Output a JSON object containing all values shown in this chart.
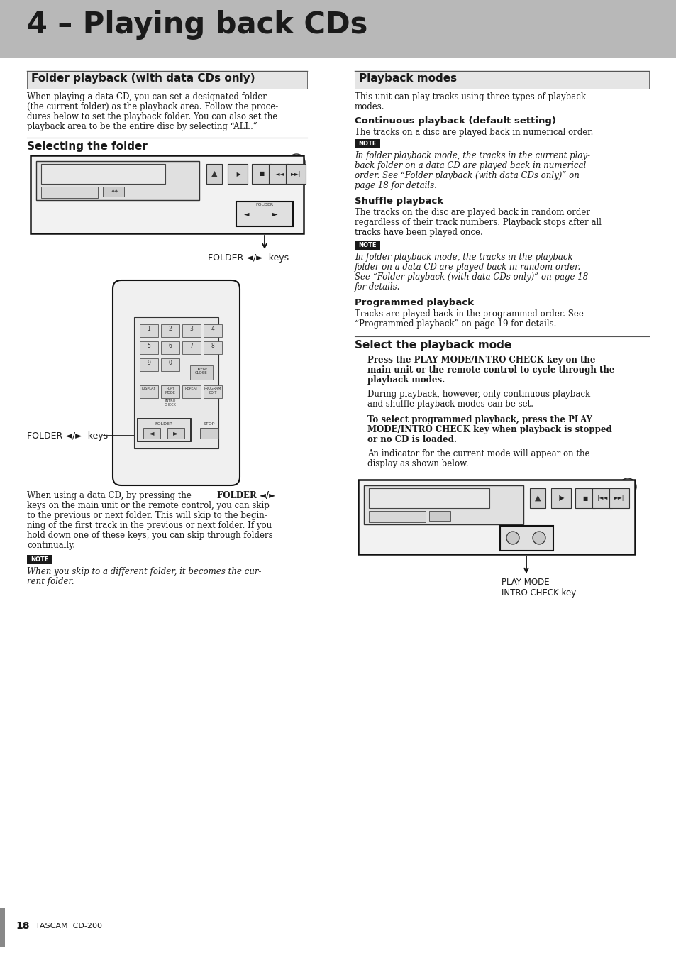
{
  "page_bg": "#ffffff",
  "header_bg": "#b8b8b8",
  "header_text": "4 – Playing back CDs",
  "header_text_color": "#1a1a1a",
  "section1_title": "Folder playback (with data CDs only)",
  "section1_body_lines": [
    "When playing a data CD, you can set a designated folder",
    "(the current folder) as the playback area. Follow the proce-",
    "dures below to set the playback folder. You can also set the",
    "playback area to be the entire disc by selecting “ALL.”"
  ],
  "subsection1_title": "Selecting the folder",
  "folder_keys_label1": "FOLDER ◄/►  keys",
  "folder_keys_label2": "FOLDER ◄/►  keys",
  "body2_lines": [
    "When using a data CD, by pressing the ",
    "keys on the main unit or the remote control, you can skip",
    "to the previous or next folder. This will skip to the begin-",
    "ning of the first track in the previous or next folder. If you",
    "hold down one of these keys, you can skip through folders",
    "continually."
  ],
  "body2_bold_suffix": "FOLDER ◄/►",
  "note_label": "NOTE",
  "note_bg": "#1a1a1a",
  "note1_lines": [
    "When you skip to a different folder, it becomes the cur-",
    "rent folder."
  ],
  "section2_title": "Playback modes",
  "section2_body_lines": [
    "This unit can play tracks using three types of playback",
    "modes."
  ],
  "sub2a_title": "Continuous playback (default setting)",
  "sub2a_body": "The tracks on a disc are played back in numerical order.",
  "note2_lines": [
    "In folder playback mode, the tracks in the current play-",
    "back folder on a data CD are played back in numerical",
    "order. See “Folder playback (with data CDs only)” on",
    "page 18 for details."
  ],
  "sub2b_title": "Shuffle playback",
  "sub2b_body_lines": [
    "The tracks on the disc are played back in random order",
    "regardless of their track numbers. Playback stops after all",
    "tracks have been played once."
  ],
  "note3_lines": [
    "In folder playback mode, the tracks in the playback",
    "folder on a data CD are played back in random order.",
    "See “Folder playback (with data CDs only)” on page 18",
    "for details."
  ],
  "sub2c_title": "Programmed playback",
  "sub2c_body_lines": [
    "Tracks are played back in the programmed order. See",
    "“Programmed playback” on page 19 for details."
  ],
  "section3_title": "Select the playback mode",
  "sel_bold1_lines": [
    "Press the PLAY MODE/INTRO CHECK key on the",
    "main unit or the remote control to cycle through the",
    "playback modes."
  ],
  "sel_body1_lines": [
    "During playback, however, only continuous playback",
    "and shuffle playback modes can be set."
  ],
  "sel_bold2_lines": [
    "To select programmed playback, press the PLAY",
    "MODE/INTRO CHECK key when playback is stopped",
    "or no CD is loaded."
  ],
  "sel_body2_lines": [
    "An indicator for the current mode will appear on the",
    "display as shown below."
  ],
  "play_mode_label": "PLAY MODE\nINTRO CHECK key",
  "footer_text": "18",
  "footer_brand": "TASCAM  CD-200"
}
